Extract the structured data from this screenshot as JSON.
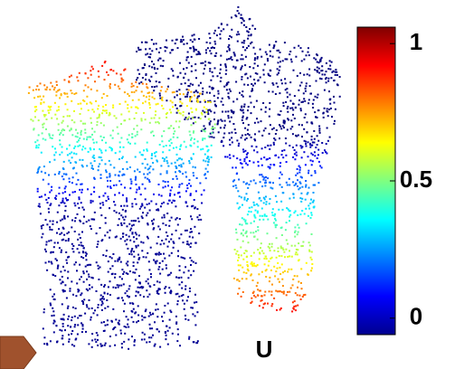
{
  "colorbar": {
    "lim": [
      -0.06,
      1.06
    ],
    "ticks": [
      0,
      0.5,
      1
    ]
  },
  "label": "U"
}
